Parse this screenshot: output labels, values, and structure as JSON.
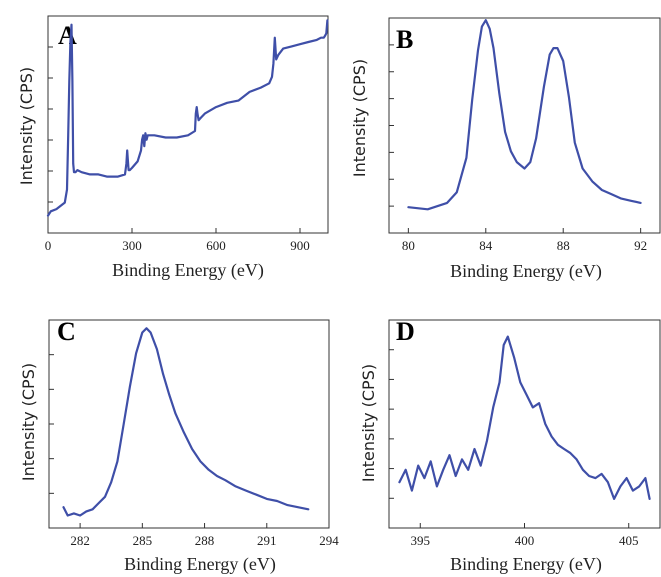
{
  "figure": {
    "colors": {
      "line": "#3f4fa8",
      "axis": "#333333"
    }
  },
  "chart_data": [
    {
      "panel": "A",
      "type": "line",
      "xlabel": "Binding Energy (eV)",
      "ylabel": "Intensity (CPS)",
      "xlim": [
        0,
        1000
      ],
      "xticks": [
        0,
        300,
        600,
        900
      ],
      "ylim": [
        0,
        100
      ],
      "y_tick_count": 6,
      "series": [
        {
          "x": [
            0,
            10,
            30,
            50,
            60,
            68,
            72,
            76,
            80,
            84,
            87,
            90,
            93,
            98,
            105,
            120,
            150,
            180,
            210,
            250,
            275,
            280,
            283,
            285,
            288,
            292,
            300,
            320,
            332,
            336,
            340,
            344,
            348,
            352,
            356,
            362,
            380,
            420,
            460,
            500,
            525,
            528,
            531,
            534,
            538,
            545,
            560,
            600,
            640,
            680,
            720,
            760,
            790,
            800,
            805,
            810,
            815,
            822,
            840,
            870,
            900,
            930,
            960,
            975,
            985,
            990,
            994,
            998
          ],
          "values": [
            8,
            10,
            11,
            13,
            14,
            20,
            45,
            70,
            88,
            96,
            70,
            32,
            28,
            28,
            29,
            28,
            27,
            27,
            26,
            26,
            27,
            32,
            38,
            34,
            29,
            29,
            30,
            33,
            38,
            43,
            45,
            40,
            46,
            43,
            45,
            45,
            45,
            44,
            44,
            45,
            47,
            55,
            58,
            55,
            52,
            53,
            55,
            58,
            60,
            61,
            65,
            67,
            69,
            72,
            78,
            90,
            80,
            82,
            85,
            86,
            87,
            88,
            89,
            90,
            90,
            91,
            92,
            98
          ]
        }
      ]
    },
    {
      "panel": "B",
      "type": "line",
      "xlabel": "Binding Energy (eV)",
      "ylabel": "Intensity (CPS)",
      "xlim": [
        79,
        93
      ],
      "xticks": [
        80,
        84,
        88,
        92
      ],
      "ylim": [
        0,
        100
      ],
      "y_tick_count": 7,
      "series": [
        {
          "x": [
            80,
            81,
            82,
            82.5,
            83,
            83.3,
            83.6,
            83.8,
            84,
            84.2,
            84.4,
            84.7,
            85,
            85.3,
            85.6,
            86,
            86.3,
            86.6,
            87,
            87.3,
            87.5,
            87.7,
            88,
            88.3,
            88.6,
            89,
            89.5,
            90,
            90.5,
            91,
            91.5,
            92
          ],
          "values": [
            12,
            11,
            14,
            19,
            35,
            62,
            85,
            96,
            99,
            95,
            86,
            65,
            47,
            38,
            33,
            30,
            33,
            44,
            68,
            83,
            86,
            86,
            80,
            63,
            42,
            30,
            24,
            20,
            18,
            16,
            15,
            14
          ]
        }
      ]
    },
    {
      "panel": "C",
      "type": "line",
      "xlabel": "Binding Energy (eV)",
      "ylabel": "Intensity (CPS)",
      "xlim": [
        280.5,
        294
      ],
      "xticks": [
        282,
        285,
        288,
        291,
        294
      ],
      "ylim": [
        0,
        100
      ],
      "y_tick_count": 5,
      "series": [
        {
          "x": [
            281.2,
            281.4,
            281.7,
            282,
            282.3,
            282.6,
            282.9,
            283.2,
            283.5,
            283.8,
            284.1,
            284.4,
            284.7,
            285,
            285.2,
            285.4,
            285.7,
            286,
            286.3,
            286.6,
            287,
            287.4,
            287.8,
            288.2,
            288.6,
            289,
            289.5,
            290,
            290.5,
            291,
            291.5,
            292,
            292.5,
            293
          ],
          "values": [
            10,
            6,
            7,
            6,
            8,
            9,
            12,
            15,
            22,
            32,
            50,
            68,
            84,
            94,
            96,
            94,
            86,
            74,
            64,
            55,
            46,
            38,
            32,
            28,
            25,
            23,
            20,
            18,
            16,
            14,
            13,
            11,
            10,
            9
          ]
        }
      ]
    },
    {
      "panel": "D",
      "type": "line",
      "xlabel": "Binding Energy (eV)",
      "ylabel": "Intensity (CPS)",
      "xlim": [
        393.5,
        406.5
      ],
      "xticks": [
        395,
        400,
        405
      ],
      "ylim": [
        0,
        100
      ],
      "y_tick_count": 6,
      "series": [
        {
          "x": [
            394,
            394.3,
            394.6,
            394.9,
            395.2,
            395.5,
            395.8,
            396.1,
            396.4,
            396.7,
            397,
            397.3,
            397.6,
            397.9,
            398.2,
            398.5,
            398.8,
            399,
            399.2,
            399.5,
            399.8,
            400.1,
            400.4,
            400.7,
            401,
            401.3,
            401.6,
            401.9,
            402.2,
            402.5,
            402.8,
            403.1,
            403.4,
            403.7,
            404,
            404.3,
            404.6,
            404.9,
            405.2,
            405.5,
            405.8,
            406
          ],
          "values": [
            22,
            28,
            18,
            30,
            24,
            32,
            20,
            28,
            35,
            25,
            33,
            28,
            38,
            30,
            42,
            58,
            70,
            88,
            92,
            82,
            70,
            64,
            58,
            60,
            50,
            44,
            40,
            38,
            36,
            33,
            28,
            25,
            24,
            26,
            22,
            14,
            20,
            24,
            18,
            20,
            24,
            14
          ]
        }
      ]
    }
  ]
}
